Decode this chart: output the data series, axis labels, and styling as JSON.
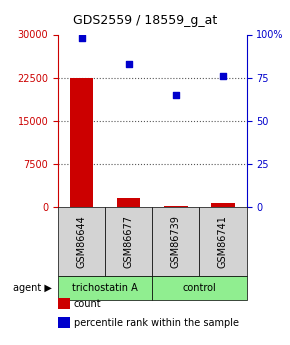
{
  "title": "GDS2559 / 18559_g_at",
  "samples": [
    "GSM86644",
    "GSM86677",
    "GSM86739",
    "GSM86741"
  ],
  "counts": [
    22500,
    1500,
    200,
    700
  ],
  "percentiles": [
    98,
    83,
    65,
    76
  ],
  "ylim_left": [
    0,
    30000
  ],
  "ylim_right": [
    0,
    100
  ],
  "yticks_left": [
    0,
    7500,
    15000,
    22500,
    30000
  ],
  "yticks_right": [
    0,
    25,
    50,
    75,
    100
  ],
  "yticklabels_left": [
    "0",
    "7500",
    "15000",
    "22500",
    "30000"
  ],
  "yticklabels_right": [
    "0",
    "25",
    "50",
    "75",
    "100%"
  ],
  "bar_color": "#cc0000",
  "dot_color": "#0000cc",
  "agent_labels": [
    "trichostatin A",
    "control"
  ],
  "agent_groups": [
    2,
    2
  ],
  "group_color": "#90ee90",
  "sample_box_color": "#d3d3d3",
  "background_color": "#ffffff",
  "legend_items": [
    [
      "count",
      "#cc0000"
    ],
    [
      "percentile rank within the sample",
      "#0000cc"
    ]
  ],
  "dotted_grid_color": "#555555",
  "left_axis_color": "#cc0000",
  "right_axis_color": "#0000cc"
}
